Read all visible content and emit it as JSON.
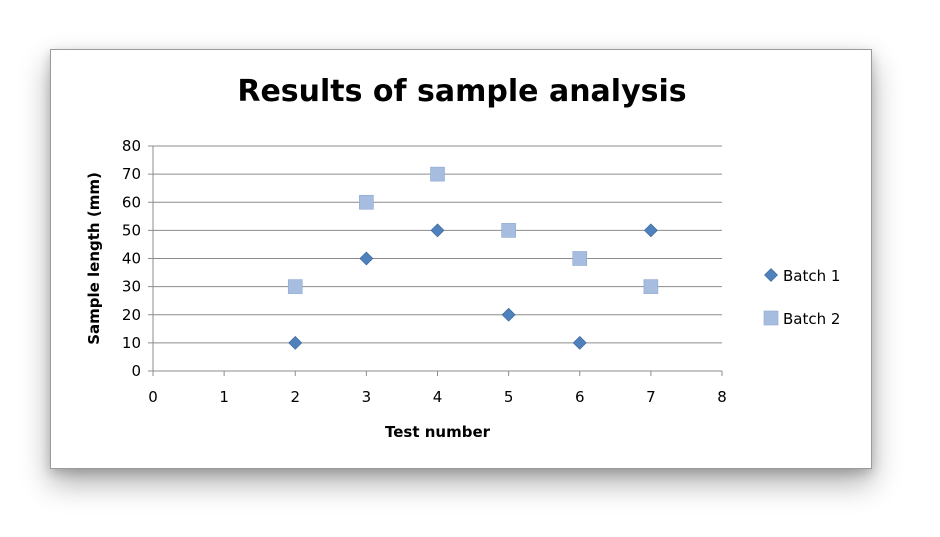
{
  "chart_data": {
    "type": "scatter",
    "title": "Results of sample analysis",
    "xlabel": "Test number",
    "ylabel": "Sample length (mm)",
    "xlim": [
      0,
      8
    ],
    "ylim": [
      0,
      80
    ],
    "x_ticks": [
      0,
      1,
      2,
      3,
      4,
      5,
      6,
      7,
      8
    ],
    "y_ticks": [
      0,
      10,
      20,
      30,
      40,
      50,
      60,
      70,
      80
    ],
    "grid": "horizontal",
    "legend_position": "right",
    "series": [
      {
        "name": "Batch 1",
        "marker": "diamond",
        "color": "#4f81bd",
        "points": [
          [
            2,
            10
          ],
          [
            3,
            40
          ],
          [
            4,
            50
          ],
          [
            5,
            20
          ],
          [
            6,
            10
          ],
          [
            7,
            50
          ]
        ]
      },
      {
        "name": "Batch 2",
        "marker": "square",
        "color": "#a7bde0",
        "points": [
          [
            2,
            30
          ],
          [
            3,
            60
          ],
          [
            4,
            70
          ],
          [
            5,
            50
          ],
          [
            6,
            40
          ],
          [
            7,
            30
          ]
        ]
      }
    ]
  }
}
